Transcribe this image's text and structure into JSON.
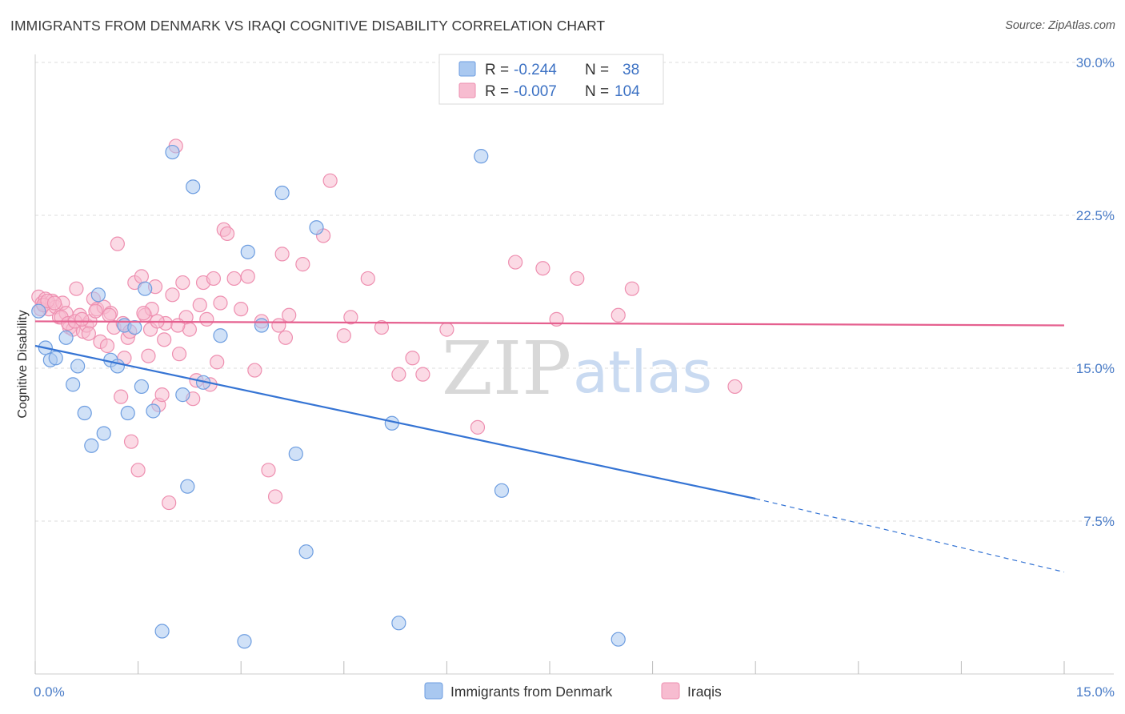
{
  "title": "IMMIGRANTS FROM DENMARK VS IRAQI COGNITIVE DISABILITY CORRELATION CHART",
  "source": "Source: ZipAtlas.com",
  "watermark": {
    "zip": "ZIP",
    "atlas": "atlas"
  },
  "colors": {
    "blue_fill": "#a9c8f0",
    "blue_stroke": "#6d9de0",
    "blue_line": "#3574d4",
    "pink_fill": "#f7bcd0",
    "pink_stroke": "#ee8fb0",
    "pink_line": "#e5608f",
    "grid": "#dddddd",
    "axis_text": "#4a7cc7"
  },
  "legend": {
    "rows": [
      {
        "r_label": "R = ",
        "r_value": "-0.244",
        "n_label": "N = ",
        "n_value": "38"
      },
      {
        "r_label": "R = ",
        "r_value": "-0.007",
        "n_label": "N = ",
        "n_value": "104"
      }
    ]
  },
  "chart_data": {
    "type": "scatter",
    "title": "IMMIGRANTS FROM DENMARK VS IRAQI COGNITIVE DISABILITY CORRELATION CHART",
    "xlabel": "",
    "ylabel": "Cognitive Disability",
    "xlim": [
      0,
      15
    ],
    "ylim": [
      0,
      30
    ],
    "x_tick_labels": [
      "0.0%",
      "15.0%"
    ],
    "y_ticks": [
      7.5,
      15.0,
      22.5,
      30.0
    ],
    "y_tick_labels": [
      "7.5%",
      "15.0%",
      "22.5%",
      "30.0%"
    ],
    "grid": true,
    "legend_position": "top-center",
    "series": [
      {
        "name": "Immigrants from Denmark",
        "color": "#a9c8f0",
        "trend": {
          "x": [
            0.0,
            10.5
          ],
          "y": [
            16.1,
            8.6
          ],
          "dashed_to": [
            15.0,
            5.0
          ]
        },
        "points": [
          [
            0.05,
            17.8
          ],
          [
            0.15,
            16.0
          ],
          [
            0.22,
            15.4
          ],
          [
            0.3,
            15.5
          ],
          [
            0.45,
            16.5
          ],
          [
            0.55,
            14.2
          ],
          [
            0.62,
            15.1
          ],
          [
            0.72,
            12.8
          ],
          [
            0.82,
            11.2
          ],
          [
            0.92,
            18.6
          ],
          [
            1.0,
            11.8
          ],
          [
            1.1,
            15.4
          ],
          [
            1.2,
            15.1
          ],
          [
            1.3,
            17.1
          ],
          [
            1.35,
            12.8
          ],
          [
            1.45,
            17.0
          ],
          [
            1.55,
            14.1
          ],
          [
            1.6,
            18.9
          ],
          [
            1.72,
            12.9
          ],
          [
            1.85,
            2.1
          ],
          [
            2.0,
            25.6
          ],
          [
            2.15,
            13.7
          ],
          [
            2.22,
            9.2
          ],
          [
            2.3,
            23.9
          ],
          [
            2.45,
            14.3
          ],
          [
            2.7,
            16.6
          ],
          [
            3.05,
            1.6
          ],
          [
            3.1,
            20.7
          ],
          [
            3.3,
            17.1
          ],
          [
            3.6,
            23.6
          ],
          [
            3.8,
            10.8
          ],
          [
            3.95,
            6.0
          ],
          [
            4.1,
            21.9
          ],
          [
            5.2,
            12.3
          ],
          [
            5.3,
            2.5
          ],
          [
            6.5,
            25.4
          ],
          [
            6.8,
            9.0
          ],
          [
            8.5,
            1.7
          ]
        ]
      },
      {
        "name": "Iraqis",
        "color": "#f7bcd0",
        "trend": {
          "x": [
            0.0,
            15.0
          ],
          "y": [
            17.3,
            17.1
          ]
        },
        "points": [
          [
            0.05,
            18.5
          ],
          [
            0.1,
            18.2
          ],
          [
            0.15,
            18.4
          ],
          [
            0.2,
            17.9
          ],
          [
            0.25,
            18.3
          ],
          [
            0.3,
            18.0
          ],
          [
            0.35,
            17.5
          ],
          [
            0.4,
            18.2
          ],
          [
            0.45,
            17.7
          ],
          [
            0.5,
            17.0
          ],
          [
            0.55,
            16.9
          ],
          [
            0.6,
            18.9
          ],
          [
            0.65,
            17.6
          ],
          [
            0.7,
            16.8
          ],
          [
            0.75,
            17.1
          ],
          [
            0.8,
            17.3
          ],
          [
            0.85,
            18.4
          ],
          [
            0.9,
            17.9
          ],
          [
            0.95,
            16.3
          ],
          [
            1.0,
            18.0
          ],
          [
            1.05,
            16.1
          ],
          [
            1.1,
            17.7
          ],
          [
            1.15,
            17.0
          ],
          [
            1.2,
            21.1
          ],
          [
            1.25,
            13.6
          ],
          [
            1.3,
            15.5
          ],
          [
            1.35,
            16.5
          ],
          [
            1.4,
            11.4
          ],
          [
            1.45,
            19.2
          ],
          [
            1.5,
            10.0
          ],
          [
            1.55,
            19.5
          ],
          [
            1.6,
            17.6
          ],
          [
            1.65,
            15.6
          ],
          [
            1.7,
            17.9
          ],
          [
            1.75,
            19.0
          ],
          [
            1.8,
            13.2
          ],
          [
            1.85,
            13.7
          ],
          [
            1.9,
            17.2
          ],
          [
            1.95,
            8.4
          ],
          [
            2.0,
            18.6
          ],
          [
            2.05,
            25.9
          ],
          [
            2.1,
            15.7
          ],
          [
            2.15,
            19.2
          ],
          [
            2.2,
            17.5
          ],
          [
            2.25,
            16.9
          ],
          [
            2.3,
            13.5
          ],
          [
            2.35,
            14.4
          ],
          [
            2.4,
            18.1
          ],
          [
            2.45,
            19.2
          ],
          [
            2.5,
            17.4
          ],
          [
            2.55,
            14.2
          ],
          [
            2.6,
            19.4
          ],
          [
            2.65,
            15.3
          ],
          [
            2.7,
            18.2
          ],
          [
            2.75,
            21.8
          ],
          [
            2.8,
            21.6
          ],
          [
            2.9,
            19.4
          ],
          [
            3.0,
            17.9
          ],
          [
            3.1,
            19.5
          ],
          [
            3.2,
            14.9
          ],
          [
            3.3,
            17.3
          ],
          [
            3.4,
            10.0
          ],
          [
            3.5,
            8.7
          ],
          [
            3.55,
            17.1
          ],
          [
            3.6,
            20.6
          ],
          [
            3.65,
            16.5
          ],
          [
            3.7,
            17.6
          ],
          [
            3.9,
            20.1
          ],
          [
            4.2,
            21.5
          ],
          [
            4.3,
            24.2
          ],
          [
            4.5,
            16.6
          ],
          [
            4.6,
            17.5
          ],
          [
            4.85,
            19.4
          ],
          [
            5.05,
            17.0
          ],
          [
            5.3,
            14.7
          ],
          [
            5.5,
            15.5
          ],
          [
            5.65,
            14.7
          ],
          [
            6.0,
            16.9
          ],
          [
            6.45,
            12.1
          ],
          [
            7.0,
            20.2
          ],
          [
            7.4,
            19.9
          ],
          [
            7.6,
            17.4
          ],
          [
            7.9,
            19.4
          ],
          [
            8.5,
            17.6
          ],
          [
            8.7,
            18.9
          ],
          [
            10.2,
            14.1
          ],
          [
            0.08,
            17.9
          ],
          [
            0.12,
            18.1
          ],
          [
            0.18,
            18.3
          ],
          [
            0.28,
            18.2
          ],
          [
            0.38,
            17.5
          ],
          [
            0.48,
            17.2
          ],
          [
            0.58,
            17.3
          ],
          [
            0.68,
            17.4
          ],
          [
            0.78,
            16.7
          ],
          [
            0.88,
            17.8
          ],
          [
            1.08,
            17.6
          ],
          [
            1.28,
            17.2
          ],
          [
            1.38,
            16.8
          ],
          [
            1.58,
            17.7
          ],
          [
            1.68,
            16.9
          ],
          [
            1.78,
            17.3
          ],
          [
            1.88,
            16.4
          ],
          [
            2.08,
            17.1
          ]
        ]
      }
    ]
  }
}
